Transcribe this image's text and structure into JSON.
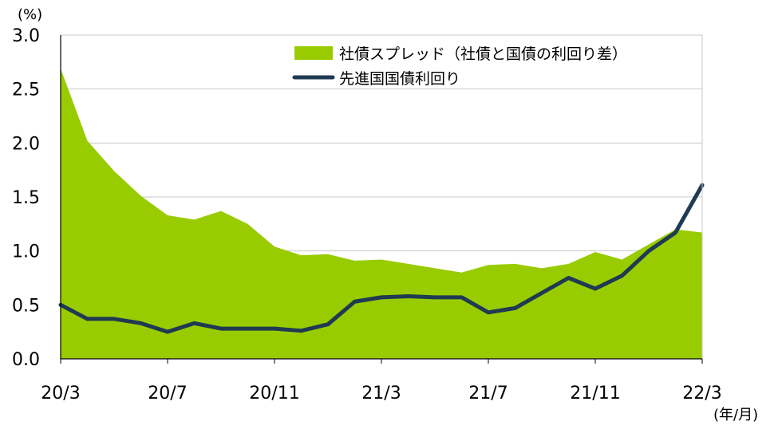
{
  "chart_data": {
    "type": "area",
    "title": "",
    "ylabel": "(%)",
    "xlabel": "(年/月)",
    "ylim": [
      0,
      3.0
    ],
    "yticks": [
      "0.0",
      "0.5",
      "1.0",
      "1.5",
      "2.0",
      "2.5",
      "3.0"
    ],
    "xticks": [
      {
        "index": 0,
        "label": "20/3"
      },
      {
        "index": 4,
        "label": "20/7"
      },
      {
        "index": 8,
        "label": "20/11"
      },
      {
        "index": 12,
        "label": "21/3"
      },
      {
        "index": 16,
        "label": "21/7"
      },
      {
        "index": 20,
        "label": "21/11"
      },
      {
        "index": 24,
        "label": "22/3"
      }
    ],
    "categories": [
      "20/3",
      "20/4",
      "20/5",
      "20/6",
      "20/7",
      "20/8",
      "20/9",
      "20/10",
      "20/11",
      "20/12",
      "21/1",
      "21/2",
      "21/3",
      "21/4",
      "21/5",
      "21/6",
      "21/7",
      "21/8",
      "21/9",
      "21/10",
      "21/11",
      "21/12",
      "22/1",
      "22/2",
      "22/3"
    ],
    "grid": true,
    "legend": "top-right",
    "series": [
      {
        "name": "社債スプレッド（社債と国債の利回り差）",
        "type": "area",
        "color": "#99cc00",
        "values": [
          2.69,
          2.02,
          1.74,
          1.51,
          1.33,
          1.29,
          1.37,
          1.25,
          1.04,
          0.96,
          0.97,
          0.91,
          0.92,
          0.88,
          0.84,
          0.8,
          0.87,
          0.88,
          0.84,
          0.88,
          0.99,
          0.92,
          1.06,
          1.2,
          1.17
        ]
      },
      {
        "name": "先進国国債利回り",
        "type": "line",
        "color": "#1f3a52",
        "values": [
          0.5,
          0.37,
          0.37,
          0.33,
          0.25,
          0.33,
          0.28,
          0.28,
          0.28,
          0.26,
          0.32,
          0.53,
          0.57,
          0.58,
          0.57,
          0.57,
          0.43,
          0.47,
          0.61,
          0.75,
          0.65,
          0.77,
          1.0,
          1.17,
          1.61
        ]
      }
    ]
  }
}
